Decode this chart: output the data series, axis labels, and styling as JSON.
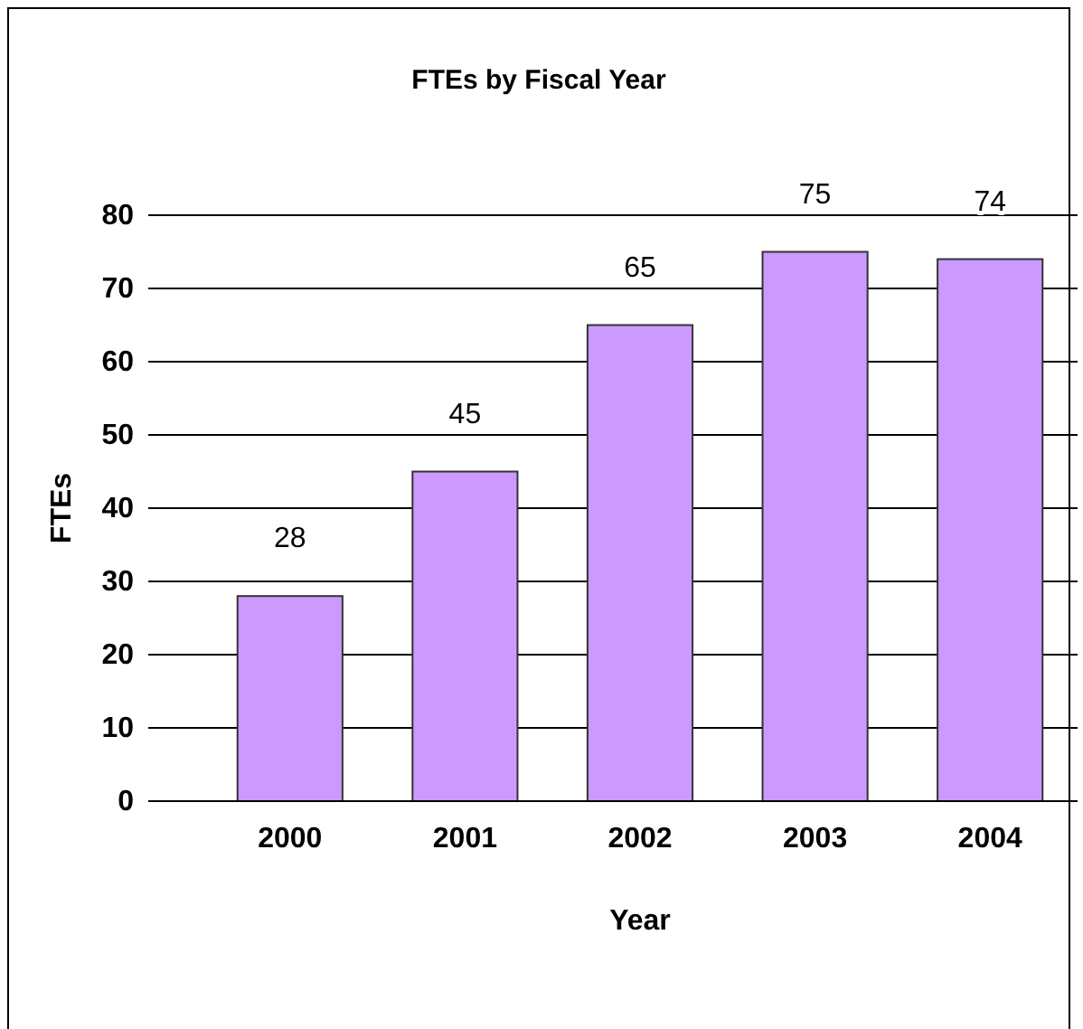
{
  "chart_data": {
    "type": "bar",
    "title": "FTEs by Fiscal Year",
    "xlabel": "Year",
    "ylabel": "FTEs",
    "categories": [
      "2000",
      "2001",
      "2002",
      "2003",
      "2004"
    ],
    "values": [
      28,
      45,
      65,
      75,
      74
    ],
    "color": "#cc99ff",
    "ylim": [
      0,
      80
    ],
    "yticks": [
      0,
      10,
      20,
      30,
      40,
      50,
      60,
      70,
      80
    ],
    "grid": "y",
    "data_labels": true
  }
}
